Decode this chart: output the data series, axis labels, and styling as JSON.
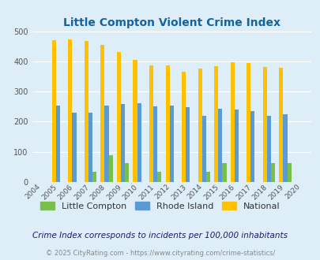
{
  "title": "Little Compton Violent Crime Index",
  "years": [
    2004,
    2005,
    2006,
    2007,
    2008,
    2009,
    2010,
    2011,
    2012,
    2013,
    2014,
    2015,
    2016,
    2017,
    2018,
    2019,
    2020
  ],
  "little_compton": [
    0,
    0,
    0,
    33,
    90,
    62,
    0,
    33,
    0,
    0,
    33,
    62,
    0,
    0,
    62,
    62,
    0
  ],
  "rhode_island": [
    0,
    254,
    231,
    231,
    254,
    258,
    261,
    250,
    254,
    247,
    220,
    244,
    241,
    234,
    220,
    224,
    0
  ],
  "national": [
    0,
    469,
    474,
    467,
    455,
    432,
    405,
    387,
    387,
    367,
    377,
    384,
    397,
    394,
    381,
    380,
    0
  ],
  "little_compton_color": "#78c04b",
  "rhode_island_color": "#5b9bd5",
  "national_color": "#ffc000",
  "bg_color": "#deeef8",
  "plot_bg_color": "#deeef8",
  "title_color": "#1464a0",
  "ylim": [
    0,
    500
  ],
  "yticks": [
    0,
    100,
    200,
    300,
    400,
    500
  ],
  "subtitle": "Crime Index corresponds to incidents per 100,000 inhabitants",
  "footer": "© 2025 CityRating.com - https://www.cityrating.com/crime-statistics/",
  "legend_labels": [
    "Little Compton",
    "Rhode Island",
    "National"
  ],
  "subtitle_color": "#1a1a6e",
  "footer_color": "#888888"
}
